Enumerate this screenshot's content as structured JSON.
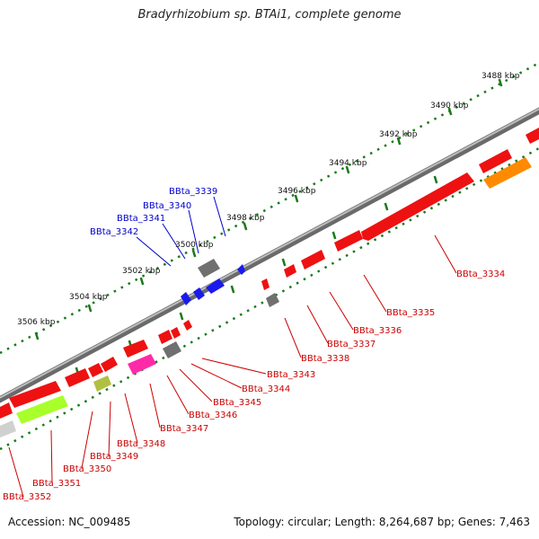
{
  "title": "Bradyrhizobium sp. BTAi1, complete genome",
  "footer": {
    "accession": "Accession: NC_009485",
    "topology": "Topology: circular; Length: 8,264,687 bp; Genes: 7,463"
  },
  "ticks": [
    "3488 kbp",
    "3490 kbp",
    "3492 kbp",
    "3494 kbp",
    "3496 kbp",
    "3498 kbp",
    "3500 kbp",
    "3502 kbp",
    "3504 kbp",
    "3506 kbp"
  ],
  "gene_labels": {
    "forward": [
      "BBta_3339",
      "BBta_3340",
      "BBta_3341",
      "BBta_3342"
    ],
    "reverse": [
      "BBta_3334",
      "BBta_3335",
      "BBta_3336",
      "BBta_3337",
      "BBta_3338",
      "BBta_3343",
      "BBta_3344",
      "BBta_3345",
      "BBta_3346",
      "BBta_3347",
      "BBta_3348",
      "BBta_3349",
      "BBta_3350",
      "BBta_3351",
      "BBta_3352"
    ]
  },
  "colors": {
    "forward_label": "#0000cc",
    "reverse_label": "#cc0000",
    "tick": "#1a7a1a",
    "backbone": "#808080",
    "gene_red": "#ee1111",
    "gene_blue": "#1a1aee",
    "gene_gray": "#707070",
    "gene_orange": "#ff8a00",
    "gene_lime": "#a8ff2a",
    "gene_olive": "#b0c040",
    "gene_pink": "#ff2aa8",
    "gene_lightgray": "#d0d0d0"
  }
}
